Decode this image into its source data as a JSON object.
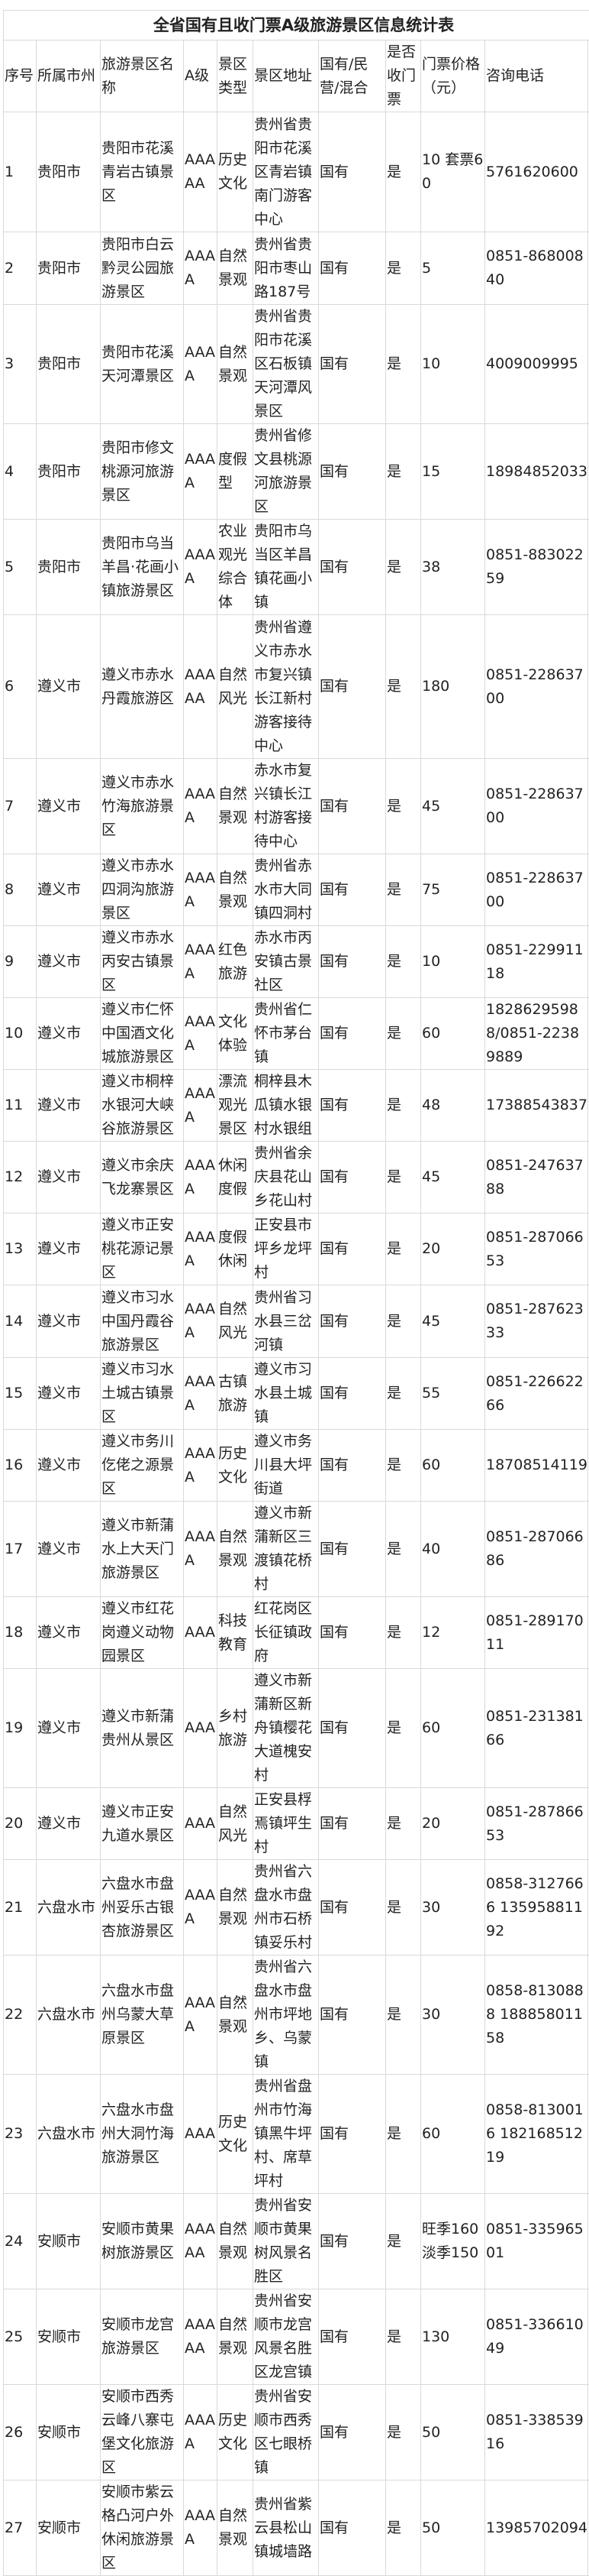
{
  "title": "全省国有且收门票A级旅游景区信息统计表",
  "headers": [
    "序号",
    "所属市州",
    "旅游景区名称",
    "A级",
    "景区类型",
    "景区地址",
    "国有/民营/混合",
    "是否收门票",
    "门票价格（元）",
    "咨询电话"
  ],
  "rows": [
    {
      "no": "1",
      "city": "贵阳市",
      "name": "贵阳市花溪青岩古镇景区",
      "level": "AAAAA",
      "type": "历史文化",
      "address": "贵州省贵阳市花溪区青岩镇南门游客中心",
      "ownership": "国有",
      "ticketed": "是",
      "price": "10 套票60",
      "phone": "5761620600"
    },
    {
      "no": "2",
      "city": "贵阳市",
      "name": "贵阳市白云黔灵公园旅游景区",
      "level": "AAAA",
      "type": "自然景观",
      "address": "贵州省贵阳市枣山路187号",
      "ownership": "国有",
      "ticketed": "是",
      "price": "5",
      "phone": "0851-86800840"
    },
    {
      "no": "3",
      "city": "贵阳市",
      "name": "贵阳市花溪天河潭景区",
      "level": "AAAA",
      "type": "自然景观",
      "address": "贵州省贵阳市花溪区石板镇天河潭风景区",
      "ownership": "国有",
      "ticketed": "是",
      "price": "10",
      "phone": "4009009995"
    },
    {
      "no": "4",
      "city": "贵阳市",
      "name": "贵阳市修文桃源河旅游景区",
      "level": "AAAA",
      "type": "度假型",
      "address": "贵州省修文县桃源河旅游景区",
      "ownership": "国有",
      "ticketed": "是",
      "price": "15",
      "phone": "18984852033"
    },
    {
      "no": "5",
      "city": "贵阳市",
      "name": "贵阳市乌当羊昌·花画小镇旅游景区",
      "level": "AAAA",
      "type": "农业观光综合体",
      "address": "贵阳市乌当区羊昌镇花画小镇",
      "ownership": "国有",
      "ticketed": "是",
      "price": "38",
      "phone": "0851-88302259"
    },
    {
      "no": "6",
      "city": "遵义市",
      "name": "遵义市赤水丹霞旅游区",
      "level": "AAAAA",
      "type": "自然风光",
      "address": "贵州省遵义市赤水市复兴镇长江新村游客接待中心",
      "ownership": "国有",
      "ticketed": "是",
      "price": "180",
      "phone": "0851-22863700"
    },
    {
      "no": "7",
      "city": "遵义市",
      "name": "遵义市赤水竹海旅游景区",
      "level": "AAAA",
      "type": "自然景观",
      "address": "赤水市复兴镇长江村游客接待中心",
      "ownership": "国有",
      "ticketed": "是",
      "price": "45",
      "phone": "0851-22863700"
    },
    {
      "no": "8",
      "city": "遵义市",
      "name": "遵义市赤水四洞沟旅游景区",
      "level": "AAAA",
      "type": "自然景观",
      "address": "贵州省赤水市大同镇四洞村",
      "ownership": "国有",
      "ticketed": "是",
      "price": "75",
      "phone": "0851-22863700"
    },
    {
      "no": "9",
      "city": "遵义市",
      "name": "遵义市赤水丙安古镇景区",
      "level": "AAAA",
      "type": "红色旅游",
      "address": "赤水市丙安镇古景社区",
      "ownership": "国有",
      "ticketed": "是",
      "price": "10",
      "phone": "0851-22991118"
    },
    {
      "no": "10",
      "city": "遵义市",
      "name": "遵义市仁怀中国酒文化城旅游景区",
      "level": "AAAA",
      "type": "文化体验",
      "address": "贵州省仁怀市茅台镇",
      "ownership": "国有",
      "ticketed": "是",
      "price": "60",
      "phone": "18286295988/0851-22389889"
    },
    {
      "no": "11",
      "city": "遵义市",
      "name": "遵义市桐梓水银河大峡谷旅游景区",
      "level": "AAAA",
      "type": "漂流观光景区",
      "address": "桐梓县木瓜镇水银村水银组",
      "ownership": "国有",
      "ticketed": "是",
      "price": "48",
      "phone": "17388543837"
    },
    {
      "no": "12",
      "city": "遵义市",
      "name": "遵义市余庆飞龙寨景区",
      "level": "AAAA",
      "type": "休闲度假",
      "address": "贵州省余庆县花山乡花山村",
      "ownership": "国有",
      "ticketed": "是",
      "price": "45",
      "phone": "0851-24763788"
    },
    {
      "no": "13",
      "city": "遵义市",
      "name": "遵义市正安桃花源记景区",
      "level": "AAAA",
      "type": "度假休闲",
      "address": "正安县市坪乡龙坪村",
      "ownership": "国有",
      "ticketed": "是",
      "price": "20",
      "phone": "0851-28706653"
    },
    {
      "no": "14",
      "city": "遵义市",
      "name": "遵义市习水中国丹霞谷旅游景区",
      "level": "AAAA",
      "type": "自然风光",
      "address": "贵州省习水县三岔河镇",
      "ownership": "国有",
      "ticketed": "是",
      "price": "45",
      "phone": "0851-28762333"
    },
    {
      "no": "15",
      "city": "遵义市",
      "name": "遵义市习水土城古镇景区",
      "level": "AAAA",
      "type": "古镇旅游",
      "address": "遵义市习水县土城镇",
      "ownership": "国有",
      "ticketed": "是",
      "price": "55",
      "phone": "0851-22662266"
    },
    {
      "no": "16",
      "city": "遵义市",
      "name": "遵义市务川仡佬之源景区",
      "level": "AAAA",
      "type": "历史文化",
      "address": "遵义市务川县大坪街道",
      "ownership": "国有",
      "ticketed": "是",
      "price": "60",
      "phone": "18708514119"
    },
    {
      "no": "17",
      "city": "遵义市",
      "name": "遵义市新蒲水上大天门旅游景区",
      "level": "AAAA",
      "type": "自然景观",
      "address": "遵义市新蒲新区三渡镇花桥村",
      "ownership": "国有",
      "ticketed": "是",
      "price": "40",
      "phone": "0851-28706686"
    },
    {
      "no": "18",
      "city": "遵义市",
      "name": "遵义市红花岗遵义动物园景区",
      "level": "AAA",
      "type": "科技教育",
      "address": "红花岗区长征镇政府",
      "ownership": "国有",
      "ticketed": "是",
      "price": "12",
      "phone": "0851-28917011"
    },
    {
      "no": "19",
      "city": "遵义市",
      "name": "遵义市新蒲贵州从景区",
      "level": "AAA",
      "type": "乡村旅游",
      "address": "遵义市新蒲新区新舟镇樱花大道槐安村",
      "ownership": "国有",
      "ticketed": "是",
      "price": "60",
      "phone": "0851-23138166"
    },
    {
      "no": "20",
      "city": "遵义市",
      "name": "遵义市正安九道水景区",
      "level": "AAA",
      "type": "自然风光",
      "address": "正安县桴焉镇坪生村",
      "ownership": "国有",
      "ticketed": "是",
      "price": "20",
      "phone": "0851-28786653"
    },
    {
      "no": "21",
      "city": "六盘水市",
      "name": "六盘水市盘州妥乐古银杏旅游景区",
      "level": "AAAA",
      "type": "自然景观",
      "address": "贵州省六盘水市盘州市石桥镇妥乐村",
      "ownership": "国有",
      "ticketed": "是",
      "price": "30",
      "phone": "0858-3127666 13595881192"
    },
    {
      "no": "22",
      "city": "六盘水市",
      "name": "六盘水市盘州乌蒙大草原景区",
      "level": "AAAA",
      "type": "自然景观",
      "address": "贵州省六盘水市盘州市坪地乡、乌蒙镇",
      "ownership": "国有",
      "ticketed": "是",
      "price": "30",
      "phone": "0858-8130888 18885801158"
    },
    {
      "no": "23",
      "city": "六盘水市",
      "name": "六盘水市盘州大洞竹海旅游景区",
      "level": "AAA",
      "type": "历史文化",
      "address": "贵州省盘州市竹海镇黑牛坪村、席草坪村",
      "ownership": "国有",
      "ticketed": "是",
      "price": "60",
      "phone": "0858-8130016 18216851219"
    },
    {
      "no": "24",
      "city": "安顺市",
      "name": "安顺市黄果树旅游景区",
      "level": "AAAAA",
      "type": "自然景观",
      "address": "贵州省安顺市黄果树风景名胜区",
      "ownership": "国有",
      "ticketed": "是",
      "price": "旺季160 淡季150",
      "phone": "0851-33596501"
    },
    {
      "no": "25",
      "city": "安顺市",
      "name": "安顺市龙宫旅游景区",
      "level": "AAAAA",
      "type": "自然景观",
      "address": "贵州省安顺市龙宫风景名胜区龙宫镇",
      "ownership": "国有",
      "ticketed": "是",
      "price": "130",
      "phone": "0851-33661049"
    },
    {
      "no": "26",
      "city": "安顺市",
      "name": "安顺市西秀云峰八寨屯堡文化旅游区",
      "level": "AAAA",
      "type": "历史文化",
      "address": "贵州省安顺市西秀区七眼桥镇",
      "ownership": "国有",
      "ticketed": "是",
      "price": "50",
      "phone": "0851-33853916"
    },
    {
      "no": "27",
      "city": "安顺市",
      "name": "安顺市紫云格凸河户外休闲旅游景区",
      "level": "AAAA",
      "type": "自然景观",
      "address": "贵州省紫云县松山镇城墙路",
      "ownership": "国有",
      "ticketed": "是",
      "price": "50",
      "phone": "13985702094"
    }
  ]
}
